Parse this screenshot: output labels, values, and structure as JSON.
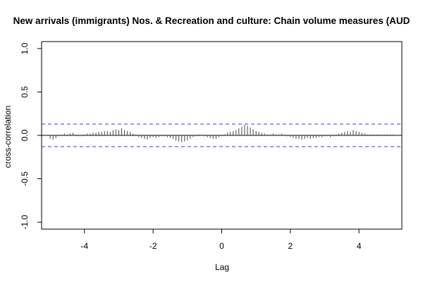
{
  "chart_data": {
    "type": "bar",
    "title": "New arrivals (immigrants) Nos. & Recreation and culture: Chain volume measures (AUD",
    "xlabel": "Lag",
    "ylabel": "cross-correlation",
    "xlim": [
      -5.25,
      5.25
    ],
    "ylim": [
      -1.08,
      1.08
    ],
    "xticks": [
      -4,
      -2,
      0,
      2,
      4
    ],
    "xtick_labels": [
      "-4",
      "-2",
      "0",
      "2",
      "4"
    ],
    "yticks": [
      -1.0,
      -0.5,
      0.0,
      0.5,
      1.0
    ],
    "ytick_labels": [
      "-1.0",
      "-0.5",
      "0.0",
      "0.5",
      "1.0"
    ],
    "confidence_band": 0.13,
    "grid": false,
    "lag_start": -5,
    "lag_step": 0.0833333,
    "series": [
      {
        "values": [
          -0.04,
          -0.05,
          -0.03,
          -0.01,
          0.01,
          0.02,
          0.01,
          0.02,
          0.03,
          0.01,
          -0.01,
          -0.01,
          0.01,
          0.02,
          0.02,
          0.03,
          0.03,
          0.04,
          0.04,
          0.05,
          0.05,
          0.04,
          0.06,
          0.07,
          0.06,
          0.08,
          0.06,
          0.05,
          0.04,
          0.02,
          0.01,
          -0.02,
          -0.03,
          -0.04,
          -0.05,
          -0.03,
          -0.02,
          -0.03,
          -0.02,
          -0.01,
          -0.01,
          -0.02,
          -0.03,
          -0.04,
          -0.06,
          -0.07,
          -0.08,
          -0.07,
          -0.06,
          -0.04,
          -0.02,
          -0.01,
          0.01,
          0.01,
          -0.01,
          -0.02,
          -0.03,
          -0.04,
          -0.04,
          -0.02,
          -0.01,
          0.01,
          0.03,
          0.04,
          0.05,
          0.06,
          0.08,
          0.1,
          0.12,
          0.11,
          0.09,
          0.07,
          0.05,
          0.04,
          0.03,
          0.02,
          0.01,
          0.01,
          0.02,
          0.01,
          0.01,
          0.02,
          0.01,
          -0.01,
          -0.02,
          -0.03,
          -0.04,
          -0.04,
          -0.05,
          -0.04,
          -0.03,
          -0.04,
          -0.03,
          -0.03,
          -0.02,
          -0.02,
          -0.01,
          -0.01,
          -0.02,
          -0.01,
          0.01,
          0.02,
          0.03,
          0.04,
          0.05,
          0.04,
          0.06,
          0.05,
          0.04,
          0.03,
          0.02,
          0.01,
          0.01,
          0.01,
          0.01,
          0.01,
          0.01,
          0.01,
          0.01,
          0.01,
          0.01
        ]
      }
    ],
    "colors": {
      "bars": "#444444",
      "band": "#3333ff",
      "axis": "#000000"
    }
  }
}
